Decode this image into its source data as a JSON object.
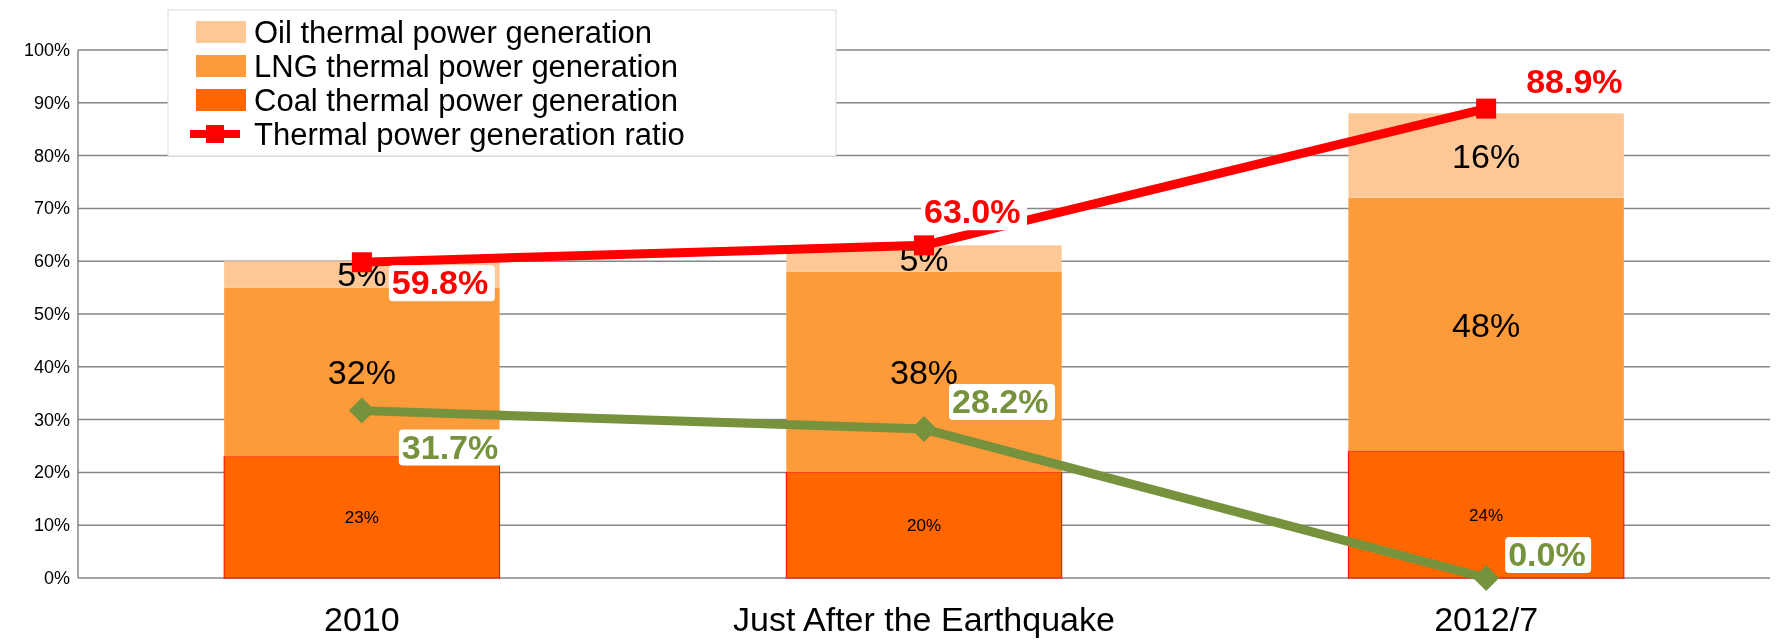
{
  "chart_data": {
    "type": "bar",
    "stacked": true,
    "categories": [
      "2010",
      "Just After the Earthquake",
      "2012/7"
    ],
    "series": [
      {
        "name": "Coal thermal power generation",
        "color": "#ff6600",
        "values": [
          23,
          20,
          24
        ],
        "value_labels": [
          "23%",
          "20%",
          "24%"
        ]
      },
      {
        "name": "LNG thermal power generation",
        "color": "#fd9a3a",
        "values": [
          32,
          38,
          48
        ],
        "value_labels": [
          "32%",
          "38%",
          "48%"
        ]
      },
      {
        "name": "Oil thermal power generation",
        "color": "#fdc896",
        "values": [
          5,
          5,
          16
        ],
        "value_labels": [
          "5%",
          "5%",
          "16%"
        ]
      },
      {
        "name": "Thermal power generation ratio",
        "type": "line",
        "marker": "square",
        "color": "#ff0000",
        "values": [
          59.8,
          63.0,
          88.9
        ],
        "value_labels": [
          "59.8%",
          "63.0%",
          "88.9%"
        ]
      },
      {
        "type": "line",
        "marker": "diamond",
        "color": "#76923c",
        "values": [
          31.7,
          28.2,
          0.0
        ],
        "value_labels": [
          "31.7%",
          "28.2%",
          "0.0%"
        ]
      }
    ],
    "ylim": [
      0,
      100
    ],
    "yticks": [
      {
        "value": 0,
        "label": "0%"
      },
      {
        "value": 10,
        "label": "10%"
      },
      {
        "value": 20,
        "label": "20%"
      },
      {
        "value": 30,
        "label": "30%"
      },
      {
        "value": 40,
        "label": "40%"
      },
      {
        "value": 50,
        "label": "50%"
      },
      {
        "value": 60,
        "label": "60%"
      },
      {
        "value": 70,
        "label": "70%"
      },
      {
        "value": 80,
        "label": "80%"
      },
      {
        "value": 90,
        "label": "90%"
      },
      {
        "value": 100,
        "label": "100%"
      }
    ],
    "grid": "y",
    "legend": "top left"
  }
}
